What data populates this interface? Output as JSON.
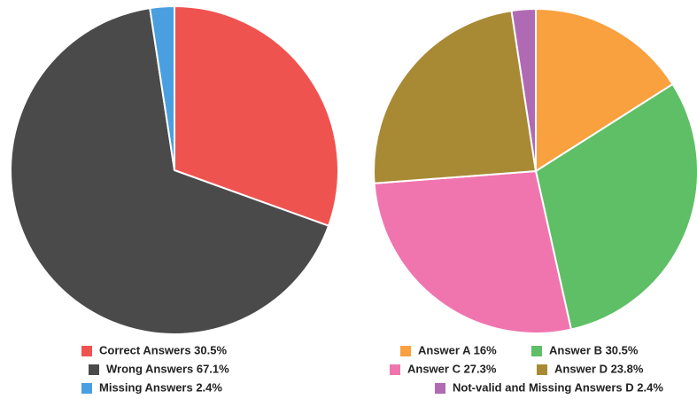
{
  "chart_data": [
    {
      "type": "pie",
      "categories": [
        "Correct Answers 30.5%",
        "Wrong Answers 67.1%",
        "Missing Answers 2.4%"
      ],
      "values": [
        30.5,
        67.1,
        2.4
      ],
      "colors": [
        "#ef5350",
        "#4a4a4a",
        "#4a9fe0"
      ]
    },
    {
      "type": "pie",
      "categories": [
        "Answer A 16%",
        "Answer B 30.5%",
        "Answer C 27.3%",
        "Answer D 23.8%",
        "Not-valid and Missing Answers D 2.4%"
      ],
      "values": [
        16,
        30.5,
        27.3,
        23.8,
        2.4
      ],
      "colors": [
        "#f9a03f",
        "#5fbf66",
        "#f075ae",
        "#a88a35",
        "#b06ab3"
      ]
    }
  ]
}
